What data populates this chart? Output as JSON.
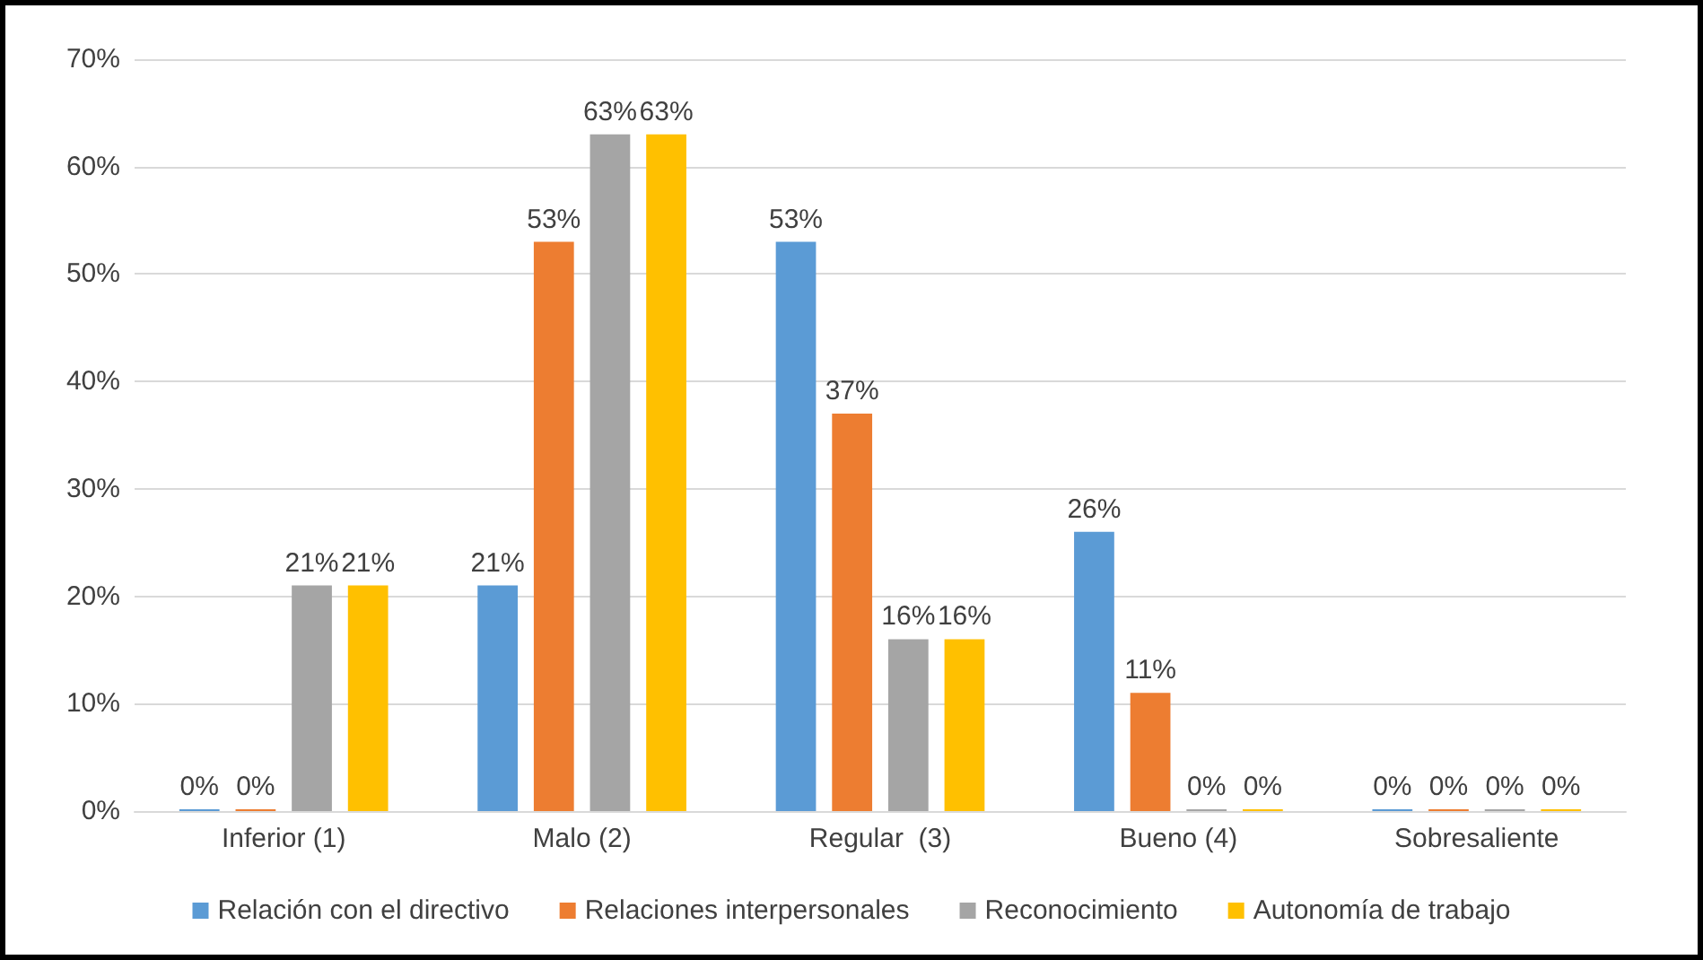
{
  "chart_data": {
    "type": "bar",
    "categories": [
      "Inferior (1)",
      "Malo (2)",
      "Regular  (3)",
      "Bueno (4)",
      "Sobresaliente"
    ],
    "series": [
      {
        "name": "Relación con el directivo",
        "color": "#5b9bd5",
        "values": [
          0,
          21,
          53,
          26,
          0
        ],
        "value_labels": [
          "0%",
          "21%",
          "53%",
          "26%",
          "0%"
        ]
      },
      {
        "name": "Relaciones interpersonales",
        "color": "#ed7d31",
        "values": [
          0,
          53,
          37,
          11,
          0
        ],
        "value_labels": [
          "0%",
          "53%",
          "37%",
          "11%",
          "0%"
        ]
      },
      {
        "name": "Reconocimiento",
        "color": "#a5a5a5",
        "values": [
          21,
          63,
          16,
          0,
          0
        ],
        "value_labels": [
          "21%",
          "63%",
          "16%",
          "0%",
          "0%"
        ]
      },
      {
        "name": "Autonomía de trabajo",
        "color": "#ffc000",
        "values": [
          21,
          63,
          16,
          0,
          0
        ],
        "value_labels": [
          "21%",
          "63%",
          "16%",
          "0%",
          "0%"
        ]
      }
    ],
    "ylim": [
      0,
      70
    ],
    "yticks": [
      {
        "value": 0,
        "label": "0%"
      },
      {
        "value": 10,
        "label": "10%"
      },
      {
        "value": 20,
        "label": "20%"
      },
      {
        "value": 30,
        "label": "30%"
      },
      {
        "value": 40,
        "label": "40%"
      },
      {
        "value": 50,
        "label": "50%"
      },
      {
        "value": 60,
        "label": "60%"
      },
      {
        "value": 70,
        "label": "70%"
      }
    ],
    "grid": "y",
    "legend": "bottom"
  }
}
